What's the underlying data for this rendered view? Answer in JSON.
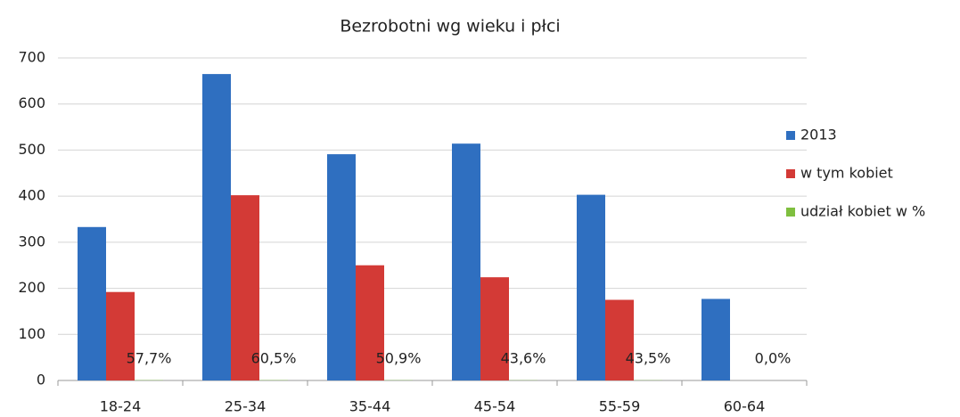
{
  "chart_data": {
    "type": "bar",
    "title": "Bezrobotni wg wieku i płci",
    "categories": [
      "18-24",
      "25-34",
      "35-44",
      "45-54",
      "55-59",
      "60-64"
    ],
    "series": [
      {
        "name": "2013",
        "color": "#2f6fc0",
        "values": [
          333,
          665,
          491,
          514,
          403,
          177
        ]
      },
      {
        "name": "w tym kobiet",
        "color": "#d33a36",
        "values": [
          192,
          402,
          250,
          224,
          175,
          0
        ]
      },
      {
        "name": "udział kobiet w %",
        "color": "#7fbf3f",
        "values": [
          0.577,
          0.605,
          0.509,
          0.436,
          0.435,
          0
        ],
        "value_labels": [
          "57,7%",
          "60,5%",
          "50,9%",
          "43,6%",
          "43,5%",
          "0,0%"
        ]
      }
    ],
    "ylim": [
      0,
      700
    ],
    "yticks": [
      0,
      100,
      200,
      300,
      400,
      500,
      600,
      700
    ],
    "grid": true,
    "legend": "right"
  }
}
